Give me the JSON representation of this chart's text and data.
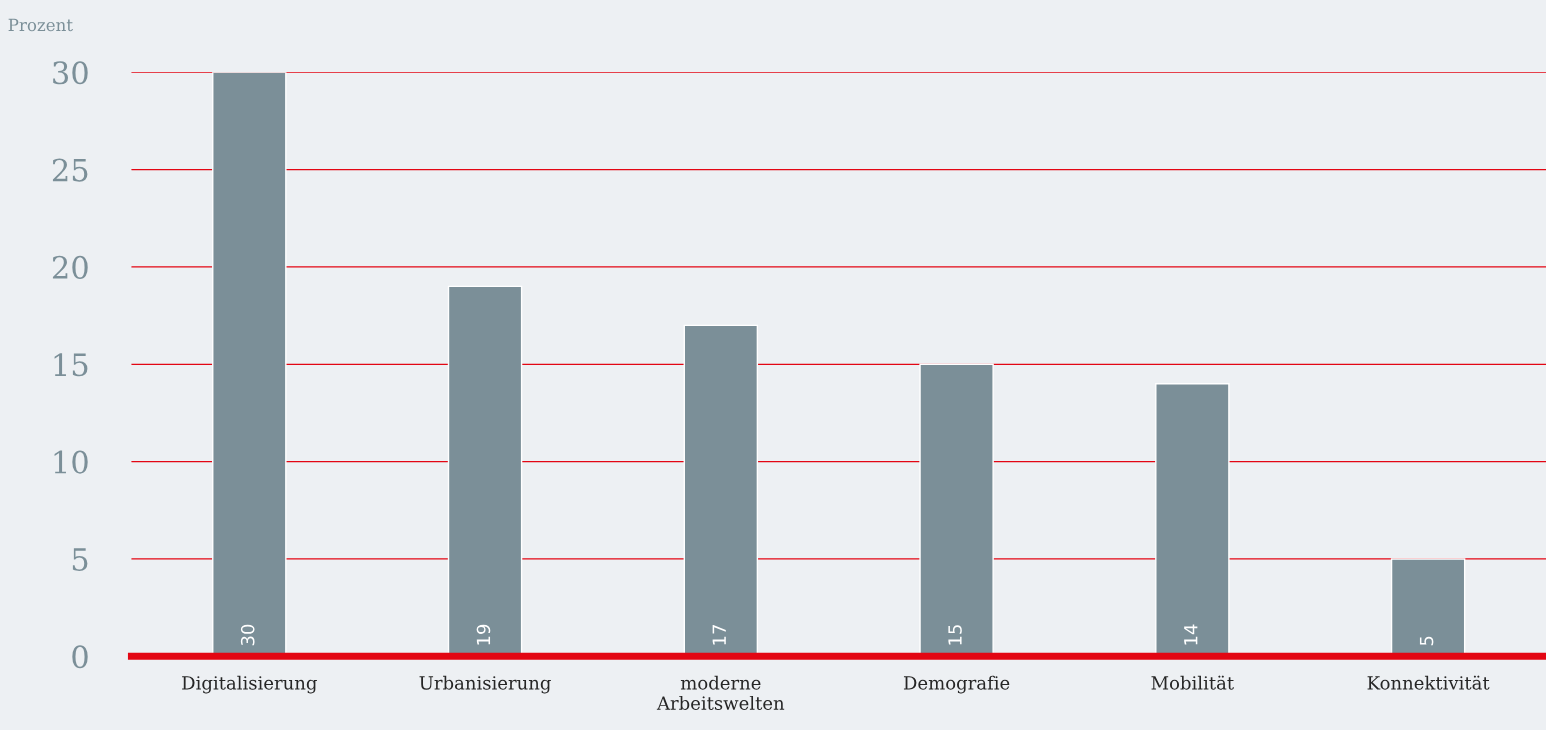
{
  "chart_data": {
    "type": "bar",
    "ylabel": "Prozent",
    "categories": [
      "Digitalisierung",
      "Urbanisierung",
      "moderne\nArbeitswelten",
      "Demografie",
      "Mobilität",
      "Konnektivität"
    ],
    "values": [
      30,
      19,
      17,
      15,
      14,
      5
    ],
    "color": "#7b8f98",
    "ylim": [
      0,
      30
    ],
    "yticks": [
      0,
      5,
      10,
      15,
      20,
      25,
      30
    ],
    "grid": "y",
    "data_labels": true,
    "legend": false
  }
}
